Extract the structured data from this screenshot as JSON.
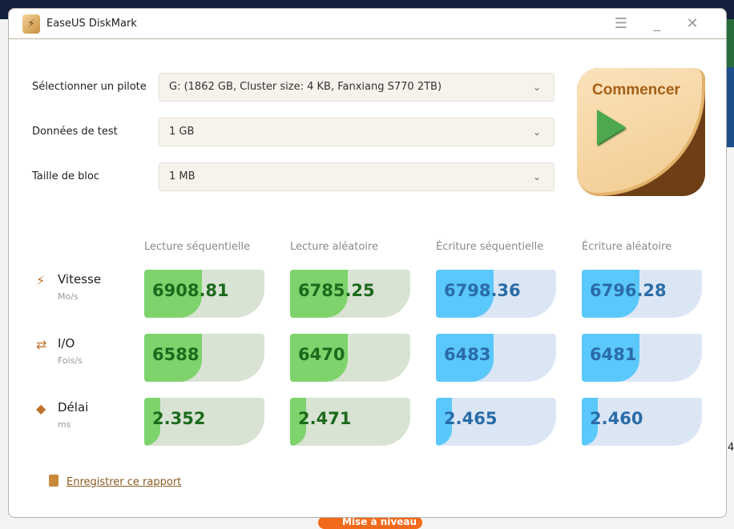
{
  "window": {
    "title": "EaseUS DiskMark"
  },
  "settings": [
    {
      "label": "Sélectionner un pilote",
      "value": "G: (1862 GB, Cluster size: 4 KB, Fanxiang S770 2TB)"
    },
    {
      "label": "Données de test",
      "value": "1 GB"
    },
    {
      "label": "Taille de bloc",
      "value": "1 MB"
    }
  ],
  "start_label": "Commencer",
  "columns": [
    "Lecture séquentielle",
    "Lecture aléatoire",
    "Écriture séquentielle",
    "Écriture aléatoire"
  ],
  "rows": [
    {
      "label": "Vitesse",
      "unit": "Mo/s",
      "icon": "lightning-icon",
      "values": [
        "6908.81",
        "6785.25",
        "6798.36",
        "6796.28"
      ],
      "fill": [
        0.48,
        0.48,
        0.48,
        0.48
      ]
    },
    {
      "label": "I/O",
      "unit": "Fois/s",
      "icon": "exchange-icon",
      "values": [
        "6588",
        "6470",
        "6483",
        "6481"
      ],
      "fill": [
        0.48,
        0.48,
        0.48,
        0.48
      ]
    },
    {
      "label": "Délai",
      "unit": "ms",
      "icon": "tag-icon",
      "values": [
        "2.352",
        "2.471",
        "2.465",
        "2.460"
      ],
      "fill": [
        0.13,
        0.13,
        0.13,
        0.13
      ]
    }
  ],
  "colors": {
    "read": "#7ed36c",
    "write": "#5ac8fa",
    "accent": "#a55f16"
  },
  "report_label": "Enregistrer ce rapport",
  "background": {
    "upgrade_label": "Mise à niveau",
    "edge_text": "4"
  }
}
